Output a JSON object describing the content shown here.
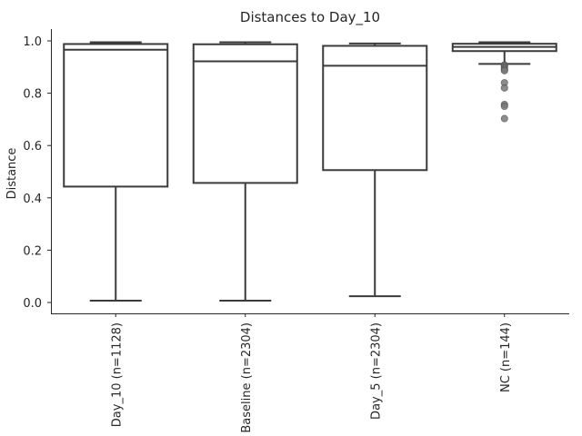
{
  "chart_data": {
    "type": "box",
    "title": "Distances to Day_10",
    "xlabel": "",
    "ylabel": "Distance",
    "ylim": [
      -0.04,
      1.05
    ],
    "yticks": [
      0.0,
      0.2,
      0.4,
      0.6,
      0.8,
      1.0
    ],
    "ytick_labels": [
      "0.0",
      "0.2",
      "0.4",
      "0.6",
      "0.8",
      "1.0"
    ],
    "grid": false,
    "categories": [
      "Day_10 (n=1128)",
      "Baseline (n=2304)",
      "Day_5 (n=2304)",
      "NC (n=144)"
    ],
    "boxes": [
      {
        "label": "Day_10 (n=1128)",
        "whisker_low": 0.007,
        "q1": 0.443,
        "median": 0.966,
        "q3": 0.988,
        "whisker_high": 0.995,
        "outliers": []
      },
      {
        "label": "Baseline (n=2304)",
        "whisker_low": 0.007,
        "q1": 0.457,
        "median": 0.922,
        "q3": 0.987,
        "whisker_high": 0.995,
        "outliers": []
      },
      {
        "label": "Day_5 (n=2304)",
        "whisker_low": 0.024,
        "q1": 0.506,
        "median": 0.905,
        "q3": 0.981,
        "whisker_high": 0.99,
        "outliers": []
      },
      {
        "label": "NC (n=144)",
        "whisker_low": 0.912,
        "q1": 0.961,
        "median": 0.977,
        "q3": 0.989,
        "whisker_high": 0.995,
        "outliers": [
          0.908,
          0.905,
          0.9,
          0.895,
          0.89,
          0.886,
          0.84,
          0.82,
          0.757,
          0.75,
          0.703
        ]
      }
    ]
  }
}
